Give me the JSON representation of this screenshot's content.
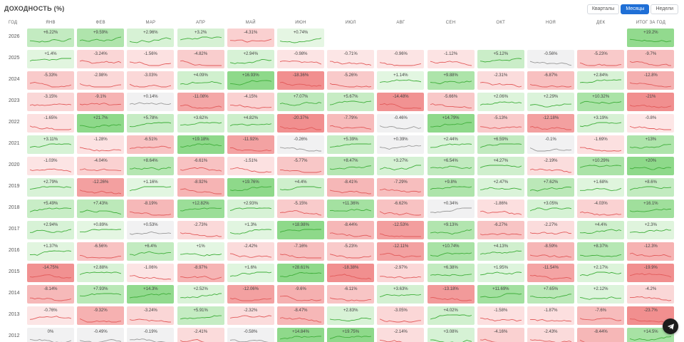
{
  "title": "ДОХОДНОСТЬ (%)",
  "period_buttons": [
    {
      "label": "Кварталы",
      "active": false
    },
    {
      "label": "Месяцы",
      "active": true
    },
    {
      "label": "Недели",
      "active": false
    }
  ],
  "columns": [
    "ГОД",
    "ЯНВ",
    "ФЕВ",
    "МАР",
    "АПР",
    "МАЙ",
    "ИЮН",
    "ИЮЛ",
    "АВГ",
    "СЕН",
    "ОКТ",
    "НОЯ",
    "ДЕК",
    "ИТОГ ЗА ГОД"
  ],
  "rows": [
    {
      "year": "2026",
      "values": [
        "+6.22%",
        "+9.59%",
        "+2.96%",
        "+3.2%",
        "-4.31%",
        "+0.74%",
        "",
        "",
        "",
        "",
        "",
        "",
        "+19.2%"
      ]
    },
    {
      "year": "2025",
      "values": [
        "+1.4%",
        "-3.24%",
        "-1.56%",
        "-4.82%",
        "+2.94%",
        "-0.98%",
        "-0.71%",
        "-0.96%",
        "-1.12%",
        "+5.12%",
        "-0.56%",
        "-5.23%",
        "-9.7%"
      ]
    },
    {
      "year": "2024",
      "values": [
        "-5.33%",
        "-2.98%",
        "-3.03%",
        "+4.09%",
        "+16.93%",
        "-18.36%",
        "-5.26%",
        "+1.14%",
        "+9.88%",
        "-2.31%",
        "-6.87%",
        "+2.84%",
        "-12.8%"
      ]
    },
    {
      "year": "2023",
      "values": [
        "-3.15%",
        "-9.1%",
        "+0.14%",
        "-11.08%",
        "-4.15%",
        "+7.07%",
        "+5.67%",
        "-14.48%",
        "-5.66%",
        "+2.06%",
        "+2.29%",
        "+10.32%",
        "-21%"
      ]
    },
    {
      "year": "2022",
      "values": [
        "-1.65%",
        "+21.7%",
        "+5.78%",
        "+3.62%",
        "+4.82%",
        "-20.37%",
        "-7.79%",
        "-0.46%",
        "+14.79%",
        "-5.13%",
        "-12.18%",
        "+3.19%",
        "-0.8%"
      ]
    },
    {
      "year": "2021",
      "values": [
        "+3.11%",
        "-1.28%",
        "-6.51%",
        "+19.18%",
        "-11.92%",
        "-0.26%",
        "+5.39%",
        "+0.39%",
        "+2.44%",
        "+6.59%",
        "-0.1%",
        "-1.69%",
        "+13%"
      ]
    },
    {
      "year": "2020",
      "values": [
        "-1.03%",
        "-4.04%",
        "+8.64%",
        "-6.61%",
        "-1.51%",
        "-5.77%",
        "+8.47%",
        "+3.27%",
        "+6.54%",
        "+4.27%",
        "-2.19%",
        "+10.29%",
        "+20%"
      ]
    },
    {
      "year": "2019",
      "values": [
        "+2.79%",
        "-12.26%",
        "+1.16%",
        "-8.92%",
        "+19.76%",
        "+4.4%",
        "-8.41%",
        "-7.29%",
        "+9.8%",
        "+2.47%",
        "+7.62%",
        "+1.68%",
        "+8.6%"
      ]
    },
    {
      "year": "2018",
      "values": [
        "+5.49%",
        "+7.43%",
        "-8.19%",
        "+12.82%",
        "+2.93%",
        "-5.15%",
        "+11.36%",
        "-6.62%",
        "+0.34%",
        "-1.86%",
        "+3.05%",
        "-4.03%",
        "+16.1%"
      ]
    },
    {
      "year": "2017",
      "values": [
        "+2.94%",
        "+0.89%",
        "+0.53%",
        "-2.73%",
        "+1.3%",
        "+18.98%",
        "-8.44%",
        "-12.53%",
        "+9.13%",
        "-6.27%",
        "-2.27%",
        "+4.4%",
        "+2.3%"
      ]
    },
    {
      "year": "2016",
      "values": [
        "+1.37%",
        "-6.56%",
        "+6.4%",
        "+1%",
        "-2.42%",
        "-7.16%",
        "-5.23%",
        "-12.11%",
        "+10.74%",
        "+4.13%",
        "-8.59%",
        "+8.37%",
        "-12.3%"
      ]
    },
    {
      "year": "2015",
      "values": [
        "-14.75%",
        "+2.88%",
        "-1.06%",
        "-8.97%",
        "+1.6%",
        "+28.61%",
        "-18.38%",
        "-2.97%",
        "+6.38%",
        "+1.95%",
        "-11.54%",
        "+2.17%",
        "-19.9%"
      ]
    },
    {
      "year": "2014",
      "values": [
        "-8.14%",
        "+7.93%",
        "+14.3%",
        "+2.52%",
        "-12.06%",
        "-9.6%",
        "-6.11%",
        "+3.63%",
        "-13.18%",
        "+11.69%",
        "+7.65%",
        "+2.12%",
        "-4.2%"
      ]
    },
    {
      "year": "2013",
      "values": [
        "-0.76%",
        "-9.32%",
        "-3.24%",
        "+5.91%",
        "-2.32%",
        "-8.47%",
        "+2.83%",
        "-3.05%",
        "+4.02%",
        "-1.58%",
        "-1.87%",
        "-7.6%",
        "-23.7%"
      ]
    },
    {
      "year": "2012",
      "values": [
        "0%",
        "-0.49%",
        "-0.19%",
        "-2.41%",
        "-0.58%",
        "+14.84%",
        "+19.75%",
        "-2.14%",
        "+3.08%",
        "-4.16%",
        "-2.43%",
        "-8.44%",
        "+14.5%"
      ]
    }
  ],
  "colors": {
    "positive_strong": "#8ed98a",
    "positive_light": "#e9f8e8",
    "negative_strong": "#f18f8f",
    "negative_light": "#fdeaea",
    "neutral": "#f1f1f2",
    "line_positive": "#3fae3a",
    "line_negative": "#e25b5b",
    "line_neutral": "#999999",
    "accent": "#1f6fd6"
  },
  "fab_icon": "send-icon"
}
